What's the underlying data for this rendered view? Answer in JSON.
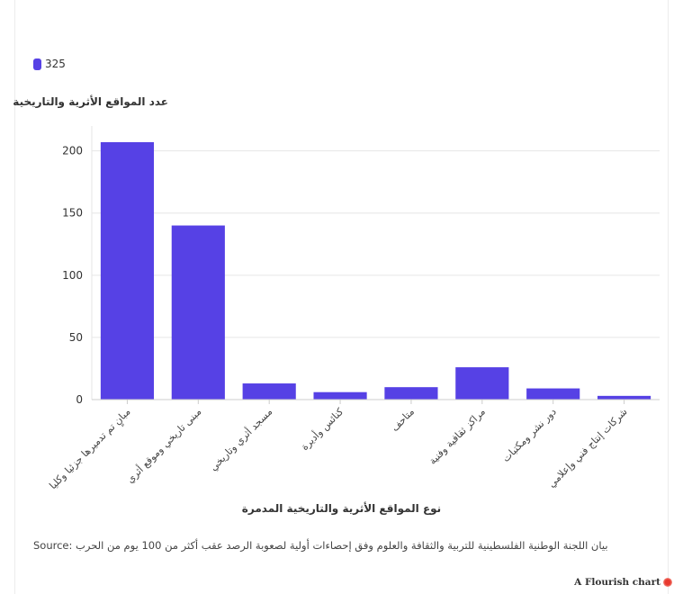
{
  "legend": {
    "label": "325",
    "color": "#5641e5"
  },
  "source": {
    "prefix": "Source:",
    "text": "بيان اللجنة الوطنية الفلسطينية للتربية والثقافة والعلوم وفق إحصاءات أولية لصعوبة الرصد عقب أكثر من 100 يوم من الحرب"
  },
  "credit": {
    "label": "A Flourish chart"
  },
  "chart_data": {
    "type": "bar",
    "ylabel": "عدد المواقع الأثرية والتاريخية",
    "xlabel": "نوع المواقع الأثرية والتاريخية المدمرة",
    "categories": [
      "مبانٍ تم تدميرها جزئيا وكليا",
      "مبنى تاريخي وموقع أثري",
      "مسجد أثري وتاريخي",
      "كنائس وأديرة",
      "متاحف",
      "مراكز ثقافية وفنية",
      "دور نشر ومكتبات",
      "شركات إنتاج فني وإعلامي"
    ],
    "series": [
      {
        "name": "325",
        "values": [
          207,
          140,
          13,
          6,
          10,
          26,
          9,
          3
        ]
      }
    ],
    "yticks": [
      0,
      50,
      100,
      150,
      200
    ],
    "ylim": [
      0,
      220
    ],
    "grid": true,
    "legend_position": "top-left",
    "colors": {
      "bar": "#5641e5",
      "grid": "#e6e6e6",
      "axis": "#cccccc",
      "text": "#333333"
    }
  }
}
